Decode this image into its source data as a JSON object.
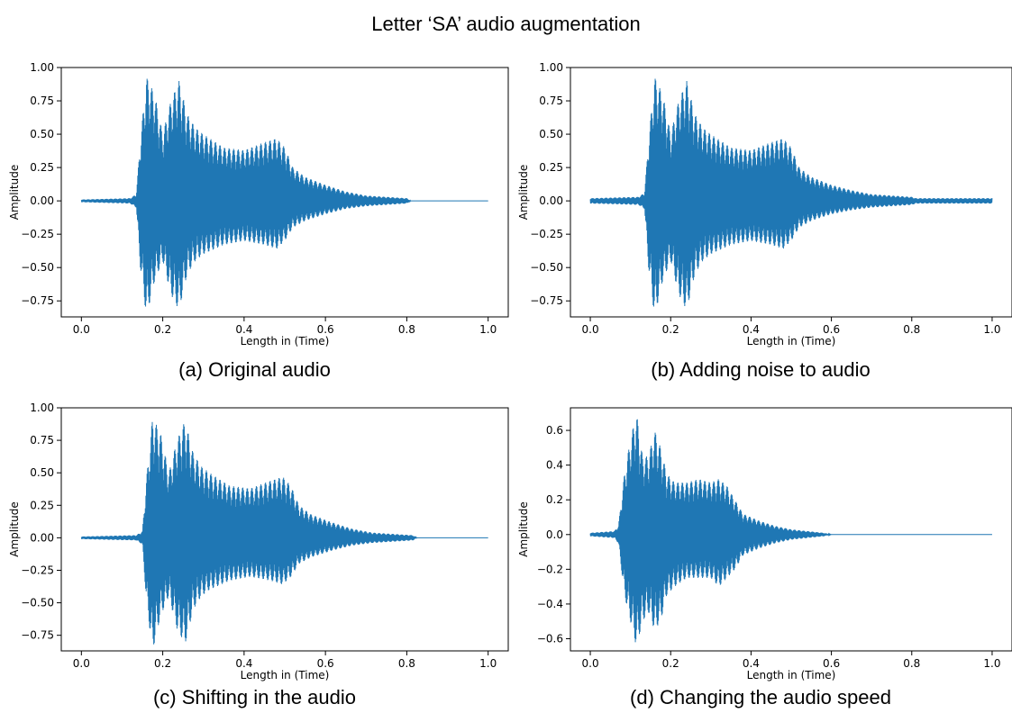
{
  "figure": {
    "title": "Letter ‘SA’ audio augmentation"
  },
  "colors": {
    "waveform": "#1f77b4"
  },
  "chart_data": [
    {
      "type": "line",
      "title": "",
      "caption": "(a) Original audio",
      "xlabel": "Length in (Time)",
      "ylabel": "Amplitude",
      "xlim": [
        0.0,
        1.0
      ],
      "ylim": [
        -0.87,
        1.0
      ],
      "xticks": [
        0.0,
        0.2,
        0.4,
        0.6,
        0.8,
        1.0
      ],
      "xtick_labels": [
        "0.0",
        "0.2",
        "0.4",
        "0.6",
        "0.8",
        "1.0"
      ],
      "yticks": [
        1.0,
        0.75,
        0.5,
        0.25,
        0.0,
        -0.25,
        -0.5,
        -0.75
      ],
      "ytick_labels": [
        "1.00",
        "0.75",
        "0.50",
        "0.25",
        "0.00",
        "−0.25",
        "−0.50",
        "−0.75"
      ],
      "grid": false,
      "series": [
        {
          "envelope_time": [
            0.0,
            0.12,
            0.135,
            0.145,
            0.16,
            0.18,
            0.2,
            0.22,
            0.24,
            0.26,
            0.28,
            0.3,
            0.35,
            0.4,
            0.45,
            0.48,
            0.5,
            0.52,
            0.55,
            0.6,
            0.65,
            0.7,
            0.75,
            0.8,
            0.81,
            1.0
          ],
          "envelope_max": [
            0.01,
            0.02,
            0.05,
            0.45,
            0.93,
            0.8,
            0.5,
            0.75,
            0.9,
            0.65,
            0.55,
            0.5,
            0.4,
            0.38,
            0.44,
            0.47,
            0.4,
            0.25,
            0.18,
            0.12,
            0.07,
            0.04,
            0.03,
            0.02,
            0.0,
            0.0
          ],
          "envelope_min": [
            -0.01,
            -0.02,
            -0.05,
            -0.5,
            -0.87,
            -0.6,
            -0.45,
            -0.7,
            -0.82,
            -0.55,
            -0.45,
            -0.4,
            -0.33,
            -0.3,
            -0.33,
            -0.36,
            -0.3,
            -0.2,
            -0.15,
            -0.1,
            -0.06,
            -0.04,
            -0.03,
            -0.02,
            0.0,
            0.0
          ]
        }
      ]
    },
    {
      "type": "line",
      "title": "",
      "caption": "(b) Adding noise to audio",
      "xlabel": "Length in (Time)",
      "ylabel": "Amplitude",
      "xlim": [
        0.0,
        1.0
      ],
      "ylim": [
        -0.87,
        1.0
      ],
      "xticks": [
        0.0,
        0.2,
        0.4,
        0.6,
        0.8,
        1.0
      ],
      "xtick_labels": [
        "0.0",
        "0.2",
        "0.4",
        "0.6",
        "0.8",
        "1.0"
      ],
      "yticks": [
        1.0,
        0.75,
        0.5,
        0.25,
        0.0,
        -0.25,
        -0.5,
        -0.75
      ],
      "ytick_labels": [
        "1.00",
        "0.75",
        "0.50",
        "0.25",
        "0.00",
        "−0.25",
        "−0.50",
        "−0.75"
      ],
      "grid": false,
      "series": [
        {
          "envelope_time": [
            0.0,
            0.12,
            0.135,
            0.145,
            0.16,
            0.18,
            0.2,
            0.22,
            0.24,
            0.26,
            0.28,
            0.3,
            0.35,
            0.4,
            0.45,
            0.48,
            0.5,
            0.52,
            0.55,
            0.6,
            0.65,
            0.7,
            0.75,
            0.8,
            0.81,
            1.0
          ],
          "envelope_max": [
            0.02,
            0.03,
            0.06,
            0.45,
            0.93,
            0.8,
            0.5,
            0.75,
            0.9,
            0.65,
            0.55,
            0.5,
            0.4,
            0.38,
            0.44,
            0.47,
            0.4,
            0.25,
            0.18,
            0.12,
            0.08,
            0.05,
            0.04,
            0.03,
            0.02,
            0.02
          ],
          "envelope_min": [
            -0.02,
            -0.03,
            -0.06,
            -0.5,
            -0.87,
            -0.6,
            -0.45,
            -0.7,
            -0.82,
            -0.55,
            -0.45,
            -0.4,
            -0.33,
            -0.3,
            -0.33,
            -0.36,
            -0.3,
            -0.2,
            -0.15,
            -0.1,
            -0.07,
            -0.05,
            -0.04,
            -0.03,
            -0.02,
            -0.02
          ]
        }
      ]
    },
    {
      "type": "line",
      "title": "",
      "caption": "(c) Shifting in the audio",
      "xlabel": "Length in (Time)",
      "ylabel": "Amplitude",
      "xlim": [
        0.0,
        1.0
      ],
      "ylim": [
        -0.87,
        1.0
      ],
      "xticks": [
        0.0,
        0.2,
        0.4,
        0.6,
        0.8,
        1.0
      ],
      "xtick_labels": [
        "0.0",
        "0.2",
        "0.4",
        "0.6",
        "0.8",
        "1.0"
      ],
      "yticks": [
        1.0,
        0.75,
        0.5,
        0.25,
        0.0,
        -0.25,
        -0.5,
        -0.75
      ],
      "ytick_labels": [
        "1.00",
        "0.75",
        "0.50",
        "0.25",
        "0.00",
        "−0.25",
        "−0.50",
        "−0.75"
      ],
      "grid": false,
      "series": [
        {
          "envelope_time": [
            0.0,
            0.135,
            0.15,
            0.16,
            0.175,
            0.195,
            0.215,
            0.235,
            0.255,
            0.275,
            0.295,
            0.315,
            0.365,
            0.415,
            0.465,
            0.495,
            0.515,
            0.535,
            0.565,
            0.615,
            0.665,
            0.715,
            0.765,
            0.815,
            0.825,
            1.0
          ],
          "envelope_max": [
            0.01,
            0.02,
            0.05,
            0.45,
            0.93,
            0.8,
            0.5,
            0.75,
            0.9,
            0.65,
            0.55,
            0.5,
            0.4,
            0.38,
            0.44,
            0.47,
            0.4,
            0.25,
            0.18,
            0.12,
            0.07,
            0.04,
            0.03,
            0.02,
            0.0,
            0.0
          ],
          "envelope_min": [
            -0.01,
            -0.02,
            -0.05,
            -0.5,
            -0.87,
            -0.6,
            -0.45,
            -0.7,
            -0.82,
            -0.55,
            -0.45,
            -0.4,
            -0.33,
            -0.3,
            -0.33,
            -0.36,
            -0.3,
            -0.2,
            -0.15,
            -0.1,
            -0.06,
            -0.04,
            -0.03,
            -0.02,
            0.0,
            0.0
          ]
        }
      ]
    },
    {
      "type": "line",
      "title": "",
      "caption": "(d) Changing the audio speed",
      "xlabel": "Length in (Time)",
      "ylabel": "Amplitude",
      "xlim": [
        0.0,
        1.0
      ],
      "ylim": [
        -0.67,
        0.73
      ],
      "xticks": [
        0.0,
        0.2,
        0.4,
        0.6,
        0.8,
        1.0
      ],
      "xtick_labels": [
        "0.0",
        "0.2",
        "0.4",
        "0.6",
        "0.8",
        "1.0"
      ],
      "yticks": [
        0.6,
        0.4,
        0.2,
        0.0,
        -0.2,
        -0.4,
        -0.6
      ],
      "ytick_labels": [
        "0.6",
        "0.4",
        "0.2",
        "0.0",
        "−0.2",
        "−0.4",
        "−0.6"
      ],
      "grid": false,
      "series": [
        {
          "envelope_time": [
            0.0,
            0.06,
            0.07,
            0.085,
            0.1,
            0.115,
            0.13,
            0.145,
            0.16,
            0.175,
            0.19,
            0.21,
            0.24,
            0.27,
            0.3,
            0.32,
            0.34,
            0.36,
            0.38,
            0.42,
            0.46,
            0.5,
            0.54,
            0.58,
            0.6,
            1.0
          ],
          "envelope_max": [
            0.01,
            0.02,
            0.05,
            0.35,
            0.55,
            0.7,
            0.45,
            0.45,
            0.6,
            0.5,
            0.35,
            0.3,
            0.3,
            0.32,
            0.3,
            0.32,
            0.28,
            0.2,
            0.12,
            0.08,
            0.05,
            0.03,
            0.02,
            0.01,
            0.0,
            0.0
          ],
          "envelope_min": [
            -0.01,
            -0.02,
            -0.05,
            -0.35,
            -0.5,
            -0.65,
            -0.5,
            -0.45,
            -0.55,
            -0.5,
            -0.35,
            -0.3,
            -0.25,
            -0.25,
            -0.25,
            -0.3,
            -0.25,
            -0.2,
            -0.12,
            -0.08,
            -0.05,
            -0.03,
            -0.02,
            -0.01,
            0.0,
            0.0
          ]
        }
      ]
    }
  ]
}
